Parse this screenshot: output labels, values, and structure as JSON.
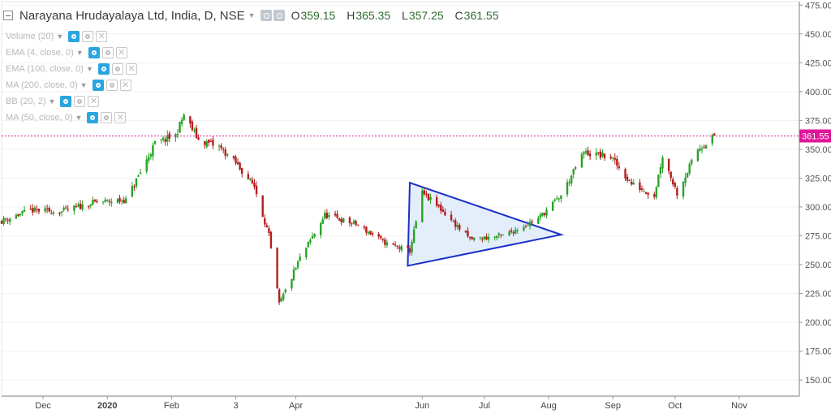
{
  "header": {
    "title": "Narayana Hrudayalaya Ltd, India, D, NSE",
    "ohlc": [
      {
        "label": "O",
        "value": "359.15"
      },
      {
        "label": "H",
        "value": "365.35"
      },
      {
        "label": "L",
        "value": "357.25"
      },
      {
        "label": "C",
        "value": "361.55"
      }
    ]
  },
  "indicators": [
    {
      "label": "Volume (20)"
    },
    {
      "label": "EMA (4, close, 0)"
    },
    {
      "label": "EMA (100, close, 0)"
    },
    {
      "label": "MA (200, close, 0)"
    },
    {
      "label": "BB (20, 2)"
    },
    {
      "label": "MA (50, close, 0)"
    }
  ],
  "colors": {
    "up": "#27a327",
    "down": "#b31e1e",
    "triangle": "#1a2fc7",
    "triangle_fill": "#e4eefb",
    "last_price": "#e0169a"
  },
  "chart_data": {
    "type": "candlestick",
    "symbol": "Narayana Hrudayalaya Ltd",
    "interval": "D",
    "exchange": "NSE",
    "x_ticks": [
      "Dec",
      "2020",
      "Feb",
      "3",
      "Apr",
      "Jun",
      "Jul",
      "Aug",
      "Sep",
      "Oct",
      "Nov"
    ],
    "y_ticks": [
      "475.00",
      "450.00",
      "425.00",
      "400.00",
      "375.00",
      "350.00",
      "325.00",
      "300.00",
      "275.00",
      "250.00",
      "225.00",
      "200.00",
      "175.00",
      "150.00"
    ],
    "ylim": [
      136,
      478
    ],
    "last_price": 361.55,
    "last_price_label": "361.55",
    "x_range": [
      "2019-11-11",
      "2020-11-30"
    ],
    "triangle": [
      {
        "date": "2020-05-26",
        "price": 321
      },
      {
        "date": "2020-05-25",
        "price": 249
      },
      {
        "date": "2020-08-07",
        "price": 276
      }
    ],
    "points": [
      {
        "date": "2019-11-11",
        "close": 288
      },
      {
        "date": "2019-11-25",
        "close": 297
      },
      {
        "date": "2019-12-10",
        "close": 296
      },
      {
        "date": "2019-12-26",
        "close": 304
      },
      {
        "date": "2020-01-10",
        "close": 306
      },
      {
        "date": "2020-01-17",
        "close": 330
      },
      {
        "date": "2020-01-24",
        "close": 355
      },
      {
        "date": "2020-02-03",
        "close": 362
      },
      {
        "date": "2020-02-07",
        "close": 380
      },
      {
        "date": "2020-02-14",
        "close": 358
      },
      {
        "date": "2020-02-24",
        "close": 352
      },
      {
        "date": "2020-03-03",
        "close": 338
      },
      {
        "date": "2020-03-12",
        "close": 318
      },
      {
        "date": "2020-03-19",
        "close": 275
      },
      {
        "date": "2020-03-24",
        "close": 215
      },
      {
        "date": "2020-04-03",
        "close": 255
      },
      {
        "date": "2020-04-15",
        "close": 293
      },
      {
        "date": "2020-04-30",
        "close": 285
      },
      {
        "date": "2020-05-15",
        "close": 268
      },
      {
        "date": "2020-05-26",
        "close": 262
      },
      {
        "date": "2020-06-01",
        "close": 312
      },
      {
        "date": "2020-06-10",
        "close": 298
      },
      {
        "date": "2020-06-24",
        "close": 272
      },
      {
        "date": "2020-07-10",
        "close": 275
      },
      {
        "date": "2020-07-27",
        "close": 290
      },
      {
        "date": "2020-08-07",
        "close": 310
      },
      {
        "date": "2020-08-18",
        "close": 347
      },
      {
        "date": "2020-08-31",
        "close": 343
      },
      {
        "date": "2020-09-10",
        "close": 320
      },
      {
        "date": "2020-09-21",
        "close": 310
      },
      {
        "date": "2020-09-25",
        "close": 345
      },
      {
        "date": "2020-10-02",
        "close": 312
      },
      {
        "date": "2020-10-12",
        "close": 350
      },
      {
        "date": "2020-10-20",
        "close": 361.55
      }
    ]
  }
}
